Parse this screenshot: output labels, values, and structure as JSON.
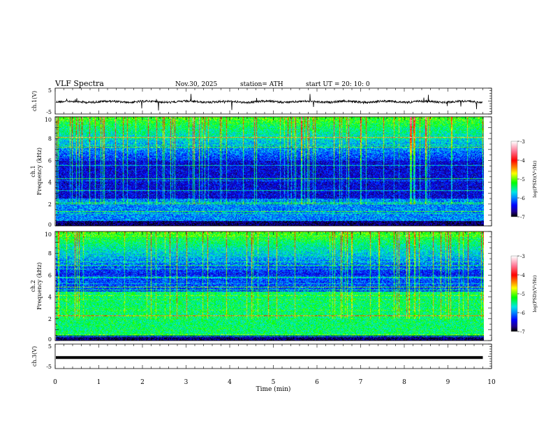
{
  "header": {
    "title": "VLF  Spectra",
    "date": "Nov.30, 2025",
    "station": "station= ATH",
    "start": "start  UT  =    20: 10: 0"
  },
  "chart_data": [
    {
      "type": "line",
      "name": "ch1-waveform",
      "ylabel": "ch.1(V)",
      "ylim": [
        -5,
        5
      ],
      "yticks": [
        "5",
        "-5"
      ],
      "xlim": [
        0,
        10
      ]
    },
    {
      "type": "heatmap",
      "name": "ch1-spectrogram",
      "ylabel": "ch.1\nFrequency  (kHz)",
      "ylabel_lines": [
        "ch.1",
        "Frequency  (kHz)"
      ],
      "ylim": [
        0,
        10
      ],
      "yticks": [
        "0",
        "2",
        "4",
        "6",
        "8",
        "10"
      ],
      "xlim": [
        0,
        10
      ],
      "data_end_min": 9.8,
      "colorbar": {
        "label": "log(PSD)(V²/Hz)",
        "range": [
          -7,
          -3
        ],
        "ticks": [
          "-3",
          "-4",
          "-5",
          "-6",
          "-7"
        ]
      }
    },
    {
      "type": "heatmap",
      "name": "ch2-spectrogram",
      "ylabel_lines": [
        "ch.2",
        "Frequency  (kHz)"
      ],
      "ylim": [
        0,
        10
      ],
      "yticks": [
        "0",
        "2",
        "4",
        "6",
        "8",
        "10"
      ],
      "xlim": [
        0,
        10
      ],
      "data_end_min": 9.8,
      "colorbar": {
        "label": "log(PSD)(V²/Hz)",
        "range": [
          -7,
          -3
        ],
        "ticks": [
          "-3",
          "-4",
          "-5",
          "-6",
          "-7"
        ]
      }
    },
    {
      "type": "line",
      "name": "ch3-waveform",
      "ylabel": "ch.3(V)",
      "ylim": [
        -5,
        5
      ],
      "yticks": [
        "5",
        "-5"
      ],
      "xlim": [
        0,
        10
      ],
      "xlabel": "Time  (min)",
      "xticks": [
        "0",
        "1",
        "2",
        "3",
        "4",
        "5",
        "6",
        "7",
        "8",
        "9",
        "10"
      ]
    }
  ]
}
